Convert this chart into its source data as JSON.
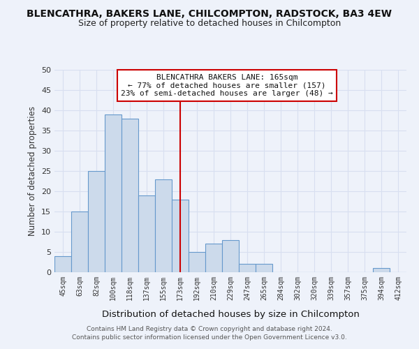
{
  "title": "BLENCATHRA, BAKERS LANE, CHILCOMPTON, RADSTOCK, BA3 4EW",
  "subtitle": "Size of property relative to detached houses in Chilcompton",
  "xlabel": "Distribution of detached houses by size in Chilcompton",
  "ylabel": "Number of detached properties",
  "bin_labels": [
    "45sqm",
    "63sqm",
    "82sqm",
    "100sqm",
    "118sqm",
    "137sqm",
    "155sqm",
    "173sqm",
    "192sqm",
    "210sqm",
    "229sqm",
    "247sqm",
    "265sqm",
    "284sqm",
    "302sqm",
    "320sqm",
    "339sqm",
    "357sqm",
    "375sqm",
    "394sqm",
    "412sqm"
  ],
  "bar_values": [
    4,
    15,
    25,
    39,
    38,
    19,
    23,
    18,
    5,
    7,
    8,
    2,
    2,
    0,
    0,
    0,
    0,
    0,
    0,
    1,
    0
  ],
  "bar_color": "#ccdaeb",
  "bar_edge_color": "#6699cc",
  "vline_x_index": 7,
  "vline_color": "#cc0000",
  "annotation_line1": "BLENCATHRA BAKERS LANE: 165sqm",
  "annotation_line2": "← 77% of detached houses are smaller (157)",
  "annotation_line3": "23% of semi-detached houses are larger (48) →",
  "ylim": [
    0,
    50
  ],
  "yticks": [
    0,
    5,
    10,
    15,
    20,
    25,
    30,
    35,
    40,
    45,
    50
  ],
  "grid_color": "#d8dff0",
  "background_color": "#eef2fa",
  "footer_line1": "Contains HM Land Registry data © Crown copyright and database right 2024.",
  "footer_line2": "Contains public sector information licensed under the Open Government Licence v3.0.",
  "title_fontsize": 10,
  "subtitle_fontsize": 9,
  "xlabel_fontsize": 9.5,
  "ylabel_fontsize": 8.5
}
